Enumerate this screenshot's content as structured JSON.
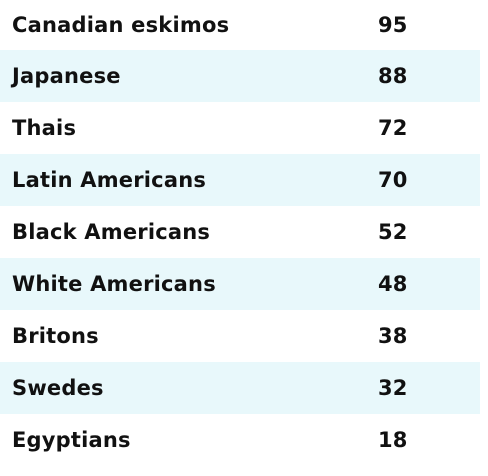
{
  "table": {
    "rows": [
      {
        "label": "Canadian eskimos",
        "value": "95",
        "shaded": false
      },
      {
        "label": "Japanese",
        "value": "88",
        "shaded": true
      },
      {
        "label": "Thais",
        "value": "72",
        "shaded": false
      },
      {
        "label": "Latin Americans",
        "value": "70",
        "shaded": true
      },
      {
        "label": "Black Americans",
        "value": "52",
        "shaded": false
      },
      {
        "label": "White Americans",
        "value": "48",
        "shaded": true
      },
      {
        "label": "Britons",
        "value": "38",
        "shaded": false
      },
      {
        "label": "Swedes",
        "value": "32",
        "shaded": true
      },
      {
        "label": "Egyptians",
        "value": "18",
        "shaded": false
      }
    ]
  },
  "colors": {
    "row_shade": "#e8f8fb",
    "text": "#111111"
  }
}
